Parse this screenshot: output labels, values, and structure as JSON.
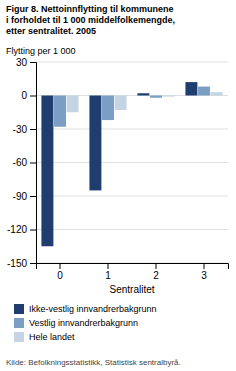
{
  "chart_data": {
    "type": "bar",
    "title": "Figur 8. Nettoinnflytting til kommunene\ni forholdet til 1 000 middelfolkemengde,\netter sentralitet. 2005",
    "y_label": "Flytting per 1 000",
    "x_label": "Sentralitet",
    "categories": [
      "0",
      "1",
      "2",
      "3"
    ],
    "series": [
      {
        "name": "Ikke-vestlig innvandrerbakgrunn",
        "color": "#1f3d6e",
        "values": [
          -135,
          -85,
          2,
          12
        ]
      },
      {
        "name": "Vestlig innvandrerbakgrunn",
        "color": "#7a9ec4",
        "values": [
          -28,
          -22,
          -2,
          8
        ]
      },
      {
        "name": "Hele landet",
        "color": "#c4d4e4",
        "values": [
          -15,
          -13,
          -1,
          3
        ]
      }
    ],
    "ylim": [
      -150,
      30
    ],
    "yticks": [
      -150,
      -120,
      -90,
      -60,
      -30,
      0,
      30
    ],
    "grid": true,
    "legend": "bottom",
    "annotations": [
      "Kilde: Befolkningsstatistikk, Statistisk sentralbyrå."
    ]
  }
}
